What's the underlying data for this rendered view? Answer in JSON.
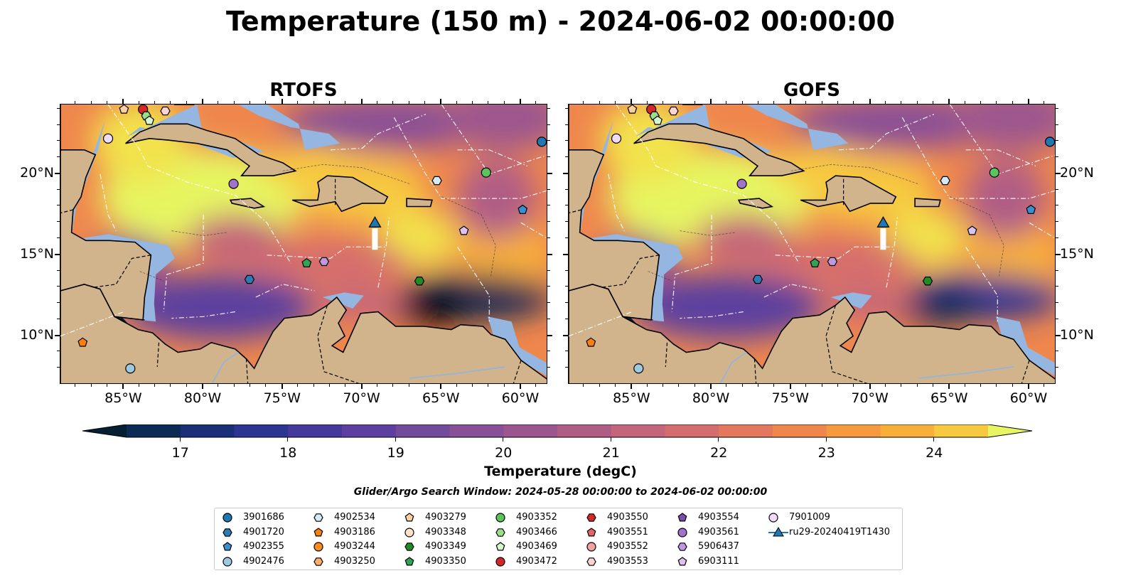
{
  "title": "Temperature (150 m) - 2024-06-02 00:00:00",
  "panels": [
    {
      "title": "RTOFS",
      "vessel_label": "ru29-20240419T1430"
    },
    {
      "title": "GOFS"
    }
  ],
  "lon_ticks": [
    "85°W",
    "80°W",
    "75°W",
    "70°W",
    "65°W",
    "60°W"
  ],
  "lat_ticks": [
    "20°N",
    "15°N",
    "10°N"
  ],
  "colorbar": {
    "label": "Temperature (degC)",
    "ticks": [
      "17",
      "18",
      "19",
      "20",
      "21",
      "22",
      "23",
      "24"
    ],
    "min": 16.5,
    "max": 24.5,
    "colors": [
      "#061f33",
      "#0b2a55",
      "#1a2f78",
      "#2d3593",
      "#45399b",
      "#5c3f9f",
      "#734b9d",
      "#894f97",
      "#9c568f",
      "#b05d86",
      "#c3657b",
      "#d46d6e",
      "#e4785f",
      "#ef874d",
      "#f59a3f",
      "#f8af3a",
      "#f7c93f",
      "#f2e24c",
      "#e6f561"
    ]
  },
  "search_window": "Glider/Argo Search Window: 2024-05-28 00:00:00 to 2024-06-02 00:00:00",
  "legend": [
    {
      "label": "3901686",
      "marker": "circle",
      "color": "#1f77b4"
    },
    {
      "label": "4901720",
      "marker": "hexagon",
      "color": "#2c7bb6"
    },
    {
      "label": "4902355",
      "marker": "pentagon",
      "color": "#3a8fd0"
    },
    {
      "label": "4902476",
      "marker": "circle",
      "color": "#9ecae1"
    },
    {
      "label": "4902534",
      "marker": "hexagon",
      "color": "#d4ebf7"
    },
    {
      "label": "4903186",
      "marker": "pentagon",
      "color": "#ff7f0e"
    },
    {
      "label": "4903244",
      "marker": "circle",
      "color": "#ff8c1a"
    },
    {
      "label": "4903250",
      "marker": "hexagon",
      "color": "#fdae6b"
    },
    {
      "label": "4903279",
      "marker": "pentagon",
      "color": "#fdd0a2"
    },
    {
      "label": "4903348",
      "marker": "circle",
      "color": "#fde4c8"
    },
    {
      "label": "4903349",
      "marker": "hexagon",
      "color": "#238b23"
    },
    {
      "label": "4903350",
      "marker": "pentagon",
      "color": "#31a354"
    },
    {
      "label": "4903352",
      "marker": "circle",
      "color": "#5cc45c"
    },
    {
      "label": "4903466",
      "marker": "hexagon",
      "color": "#98df8a"
    },
    {
      "label": "4903469",
      "marker": "pentagon",
      "color": "#d7f5cf"
    },
    {
      "label": "4903472",
      "marker": "circle",
      "color": "#d62728"
    },
    {
      "label": "4903550",
      "marker": "hexagon",
      "color": "#d62728"
    },
    {
      "label": "4903551",
      "marker": "pentagon",
      "color": "#e8646a"
    },
    {
      "label": "4903552",
      "marker": "circle",
      "color": "#f4a3a3"
    },
    {
      "label": "4903553",
      "marker": "hexagon",
      "color": "#fcd4d4"
    },
    {
      "label": "4903554",
      "marker": "pentagon",
      "color": "#7e4ea6"
    },
    {
      "label": "4903561",
      "marker": "circle",
      "color": "#a173c9"
    },
    {
      "label": "5906437",
      "marker": "hexagon",
      "color": "#bf98df"
    },
    {
      "label": "6903111",
      "marker": "pentagon",
      "color": "#dcc2f0"
    },
    {
      "label": "7901009",
      "marker": "circle",
      "color": "#eedcf8"
    },
    {
      "label": "ru29-20240419T1430",
      "marker": "triangle-line",
      "color": "#1f77b4"
    }
  ],
  "markers": [
    {
      "id": "7901009",
      "lon": -86.0,
      "lat": 22.2,
      "marker": "circle",
      "color": "#eedcf8"
    },
    {
      "id": "4903279",
      "lon": -85.0,
      "lat": 24.0,
      "marker": "pentagon",
      "color": "#fdd0a2"
    },
    {
      "id": "4903472",
      "lon": -83.8,
      "lat": 24.0,
      "marker": "circle",
      "color": "#d62728"
    },
    {
      "id": "4903553",
      "lon": -82.4,
      "lat": 23.9,
      "marker": "hexagon",
      "color": "#fcd4d4"
    },
    {
      "id": "4903466",
      "lon": -83.6,
      "lat": 23.6,
      "marker": "hexagon",
      "color": "#98df8a"
    },
    {
      "id": "4903469",
      "lon": -83.4,
      "lat": 23.3,
      "marker": "pentagon",
      "color": "#d7f5cf"
    },
    {
      "id": "4903561",
      "lon": -78.1,
      "lat": 19.4,
      "marker": "circle",
      "color": "#a173c9"
    },
    {
      "id": "4902534",
      "lon": -65.3,
      "lat": 19.6,
      "marker": "hexagon",
      "color": "#d4ebf7"
    },
    {
      "id": "4903352",
      "lon": -62.2,
      "lat": 20.1,
      "marker": "circle",
      "color": "#5cc45c"
    },
    {
      "id": "3901686",
      "lon": -58.7,
      "lat": 22.0,
      "marker": "circle",
      "color": "#1f77b4"
    },
    {
      "id": "4902355",
      "lon": -59.9,
      "lat": 17.8,
      "marker": "pentagon",
      "color": "#3a8fd0"
    },
    {
      "id": "6903111",
      "lon": -63.6,
      "lat": 16.5,
      "marker": "pentagon",
      "color": "#dcc2f0"
    },
    {
      "id": "4903350",
      "lon": -73.5,
      "lat": 14.5,
      "marker": "pentagon",
      "color": "#31a354"
    },
    {
      "id": "5906437",
      "lon": -72.4,
      "lat": 14.6,
      "marker": "hexagon",
      "color": "#bf98df"
    },
    {
      "id": "4901720",
      "lon": -77.1,
      "lat": 13.5,
      "marker": "hexagon",
      "color": "#2c7bb6"
    },
    {
      "id": "4903349",
      "lon": -66.4,
      "lat": 13.4,
      "marker": "hexagon",
      "color": "#238b23"
    },
    {
      "id": "4903186",
      "lon": -87.6,
      "lat": 9.6,
      "marker": "pentagon",
      "color": "#ff7f0e"
    },
    {
      "id": "4902476",
      "lon": -84.6,
      "lat": 8.0,
      "marker": "circle",
      "color": "#9ecae1"
    }
  ],
  "vessel": {
    "id": "ru29-20240419T1430",
    "lon": -69.2,
    "lat": 17.0,
    "color": "#1f77b4"
  }
}
